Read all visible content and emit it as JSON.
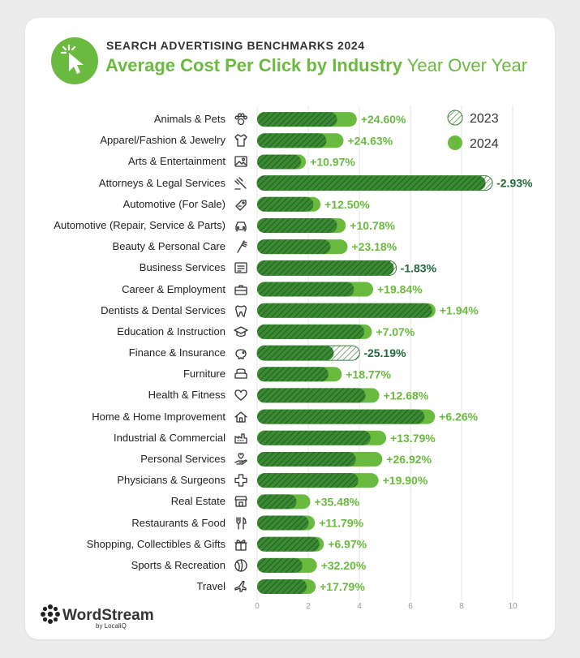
{
  "header": {
    "kicker": "SEARCH ADVERTISING BENCHMARKS 2024",
    "title_bold": "Average Cost Per Click by Industry",
    "title_light": "Year Over Year"
  },
  "brand": {
    "name": "WordStream",
    "sub": "by LocaliQ"
  },
  "colors": {
    "accent_green": "#6aba3f",
    "dark_green": "#3d8a2a",
    "hatch_bar_2023": "#2e7d32",
    "label_positive": "#6aba3f",
    "label_negative": "#1f6b3a"
  },
  "chart_data": {
    "type": "bar",
    "orientation": "horizontal",
    "title": "Average Cost Per Click by Industry Year Over Year",
    "xlim": [
      0,
      10
    ],
    "xticks": [
      "0",
      "2",
      "4",
      "6",
      "8",
      "10"
    ],
    "grid": true,
    "legend": {
      "placement": "top-right",
      "entries": [
        "2023",
        "2024"
      ]
    },
    "categories": [
      "Animals & Pets",
      "Apparel/Fashion & Jewelry",
      "Arts & Entertainment",
      "Attorneys & Legal Services",
      "Automotive (For Sale)",
      "Automotive (Repair, Service & Parts)",
      "Beauty & Personal Care",
      "Business Services",
      "Career & Employment",
      "Dentists & Dental Services",
      "Education & Instruction",
      "Finance & Insurance",
      "Furniture",
      "Health & Fitness",
      "Home & Home Improvement",
      "Industrial & Commercial",
      "Personal Services",
      "Physicians & Surgeons",
      "Real Estate",
      "Restaurants & Food",
      "Shopping, Collectibles & Gifts",
      "Sports & Recreation",
      "Travel"
    ],
    "icons": [
      "paw-icon",
      "tshirt-icon",
      "picture-icon",
      "gavel-icon",
      "car-tag-icon",
      "car-icon",
      "comb-icon",
      "document-icon",
      "briefcase-icon",
      "tooth-icon",
      "graduation-cap-icon",
      "piggy-bank-icon",
      "armchair-icon",
      "heart-icon",
      "house-icon",
      "factory-icon",
      "hand-heart-icon",
      "medical-cross-icon",
      "storefront-icon",
      "utensils-icon",
      "gift-icon",
      "ball-icon",
      "airplane-icon"
    ],
    "series": [
      {
        "name": "2023",
        "values": [
          3.13,
          2.71,
          1.72,
          9.21,
          2.2,
          3.13,
          2.87,
          5.45,
          3.79,
          6.85,
          4.19,
          4.01,
          2.79,
          4.24,
          6.55,
          4.44,
          3.86,
          3.96,
          1.54,
          2.02,
          2.44,
          1.77,
          1.94
        ]
      },
      {
        "name": "2024",
        "values": [
          3.9,
          3.38,
          1.91,
          8.94,
          2.48,
          3.47,
          3.54,
          5.35,
          4.54,
          6.98,
          4.49,
          3.0,
          3.31,
          4.78,
          6.96,
          5.05,
          4.9,
          4.75,
          2.08,
          2.26,
          2.61,
          2.34,
          2.29
        ]
      }
    ],
    "change_labels": [
      "+24.60%",
      "+24.63%",
      "+10.97%",
      "-2.93%",
      "+12.50%",
      "+10.78%",
      "+23.18%",
      "-1.83%",
      "+19.84%",
      "+1.94%",
      "+7.07%",
      "-25.19%",
      "+18.77%",
      "+12.68%",
      "+6.26%",
      "+13.79%",
      "+26.92%",
      "+19.90%",
      "+35.48%",
      "+11.79%",
      "+6.97%",
      "+32.20%",
      "+17.79%"
    ]
  }
}
